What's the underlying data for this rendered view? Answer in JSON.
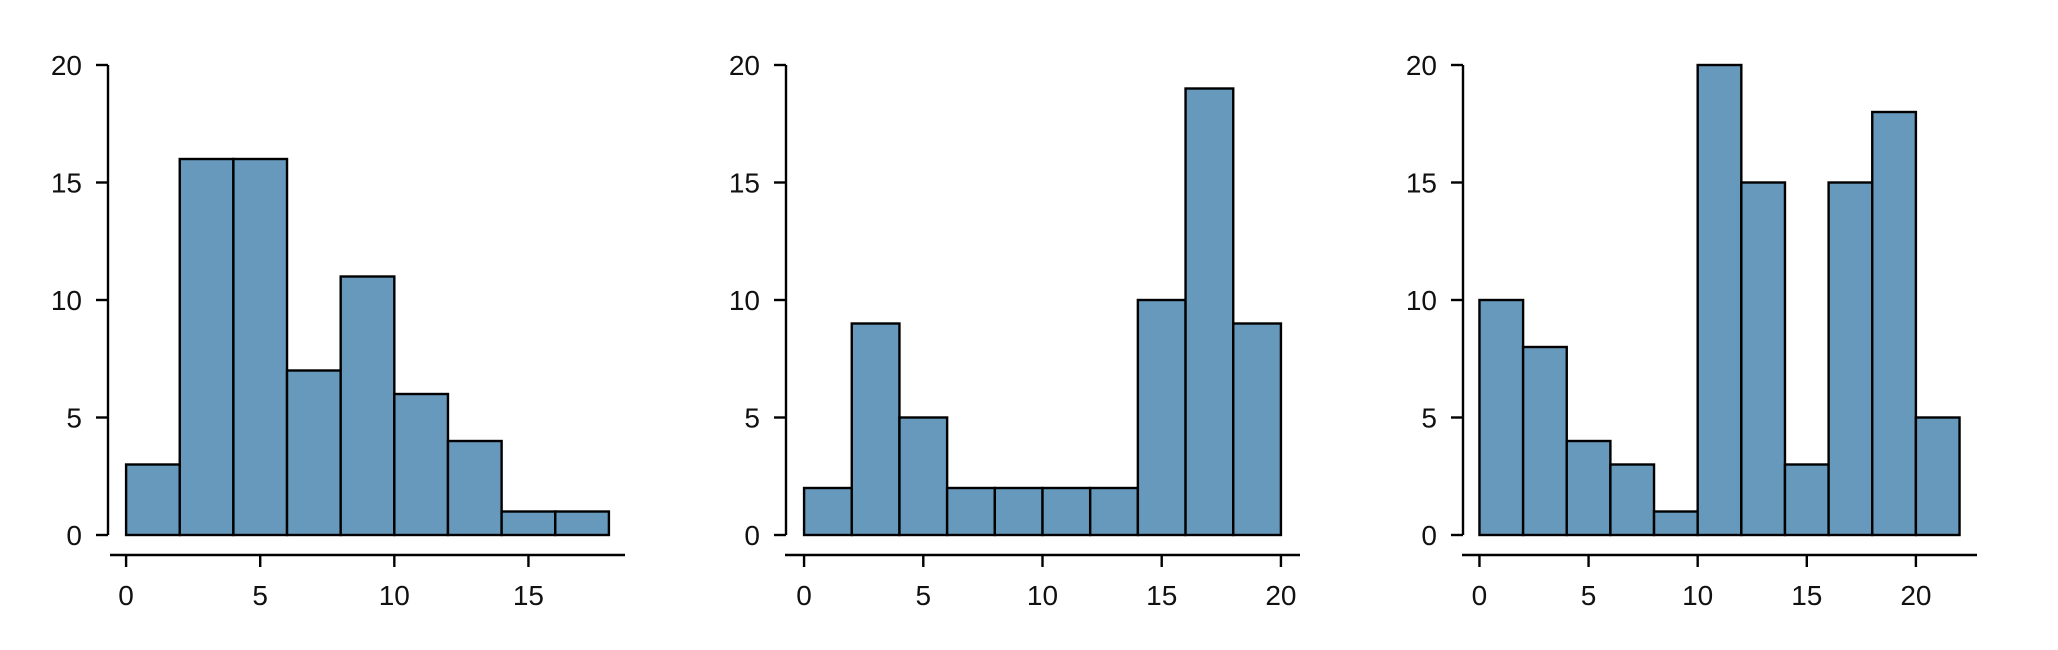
{
  "chart_data": [
    {
      "type": "bar",
      "title": "",
      "xlabel": "",
      "ylabel": "",
      "bin_width": 2,
      "bins_start": [
        0,
        2,
        4,
        6,
        8,
        10,
        12,
        14,
        16
      ],
      "values": [
        3,
        16,
        16,
        7,
        11,
        6,
        4,
        1,
        1
      ],
      "x_ticks": [
        0,
        5,
        10,
        15
      ],
      "x_tick_labels": [
        "0",
        "5",
        "10",
        "15"
      ],
      "y_ticks": [
        0,
        5,
        10,
        15,
        20
      ],
      "y_tick_labels": [
        "0",
        "5",
        "10",
        "15",
        "20"
      ],
      "xlim": [
        -0.6,
        18.6
      ],
      "ylim": [
        0,
        20
      ],
      "grid": false,
      "bar_color": "#6699bb"
    },
    {
      "type": "bar",
      "title": "",
      "xlabel": "",
      "ylabel": "",
      "bin_width": 2,
      "bins_start": [
        0,
        2,
        4,
        6,
        8,
        10,
        12,
        14,
        16,
        18
      ],
      "values": [
        2,
        9,
        5,
        2,
        2,
        2,
        2,
        10,
        19,
        9
      ],
      "x_ticks": [
        0,
        5,
        10,
        15,
        20
      ],
      "x_tick_labels": [
        "0",
        "5",
        "10",
        "15",
        "20"
      ],
      "y_ticks": [
        0,
        5,
        10,
        15,
        20
      ],
      "y_tick_labels": [
        "0",
        "5",
        "10",
        "15",
        "20"
      ],
      "xlim": [
        -0.8,
        20.8
      ],
      "ylim": [
        0,
        20
      ],
      "grid": false,
      "bar_color": "#6699bb"
    },
    {
      "type": "bar",
      "title": "",
      "xlabel": "",
      "ylabel": "",
      "bin_width": 2,
      "bins_start": [
        0,
        2,
        4,
        6,
        8,
        10,
        12,
        14,
        16,
        18,
        20
      ],
      "values": [
        10,
        8,
        4,
        3,
        1,
        20,
        15,
        3,
        15,
        18,
        5
      ],
      "x_ticks": [
        0,
        5,
        10,
        15,
        20
      ],
      "x_tick_labels": [
        "0",
        "5",
        "10",
        "15",
        "20"
      ],
      "y_ticks": [
        0,
        5,
        10,
        15,
        20
      ],
      "y_tick_labels": [
        "0",
        "5",
        "10",
        "15",
        "20"
      ],
      "xlim": [
        -0.8,
        22.8
      ],
      "ylim": [
        0,
        20
      ],
      "grid": false,
      "bar_color": "#6699bb"
    }
  ]
}
